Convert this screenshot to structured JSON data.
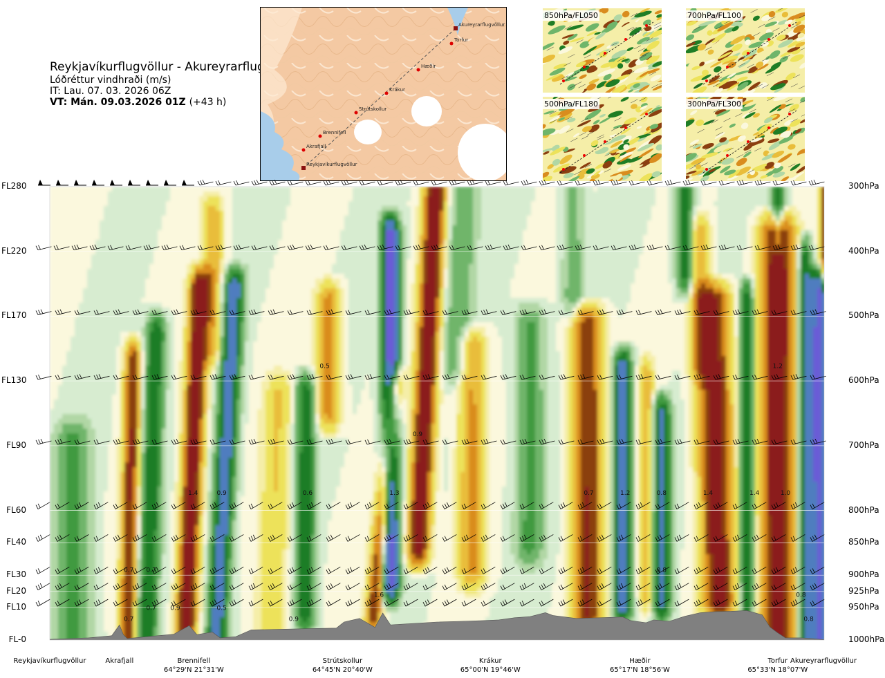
{
  "title": {
    "route": "Reykjavíkurflugvöllur - Akureyrarflugvöllur",
    "variable": "Lóðréttur vindhraði (m/s)",
    "issue_time": "IT: Lau. 07. 03. 2026 06Z",
    "valid_time": "VT: Mán. 09.03.2026 01Z",
    "lead_time": "(+43 h)"
  },
  "map": {
    "waypoints": [
      {
        "name": "Akureyrarflugvöllur"
      },
      {
        "name": "Torfur"
      },
      {
        "name": "Hæðir"
      },
      {
        "name": "Krákur"
      },
      {
        "name": "Strútskollur"
      },
      {
        "name": "Brennifell"
      },
      {
        "name": "Akrafjall"
      },
      {
        "name": "Reykjavíkurflugvöllur"
      }
    ]
  },
  "thumbnails": [
    {
      "label": "850hPa/FL050"
    },
    {
      "label": "700hPa/FL100"
    },
    {
      "label": "500hPa/FL180"
    },
    {
      "label": "300hPa/FL300"
    }
  ],
  "colors": {
    "dark_red": "#8b1a1a",
    "brown": "#8b3f10",
    "orange": "#d98c1e",
    "gold": "#e9bd3a",
    "yellow": "#ede25a",
    "pale_yellow": "#f5eea8",
    "cream": "#fbf8dd",
    "pale_green": "#d7ecd0",
    "light_green": "#b1d7a5",
    "green": "#6fb56a",
    "mid_green": "#3f9a3f",
    "dark_green": "#1f7d25",
    "blue": "#4f7dbf",
    "purple": "#6a5bd6",
    "terrain": "#808080"
  },
  "chart_data": {
    "type": "heatmap",
    "quantity": "vertical wind speed (m/s)",
    "y_levels_left": [
      "FL280",
      "FL220",
      "FL170",
      "FL130",
      "FL90",
      "FL60",
      "FL40",
      "FL30",
      "FL20",
      "FL10",
      "FL-0"
    ],
    "y_levels_right": [
      "300hPa",
      "400hPa",
      "500hPa",
      "600hPa",
      "700hPa",
      "800hPa",
      "850hPa",
      "900hPa",
      "925hPa",
      "950hPa",
      "1000hPa"
    ],
    "pressure_levels_hpa": [
      300,
      400,
      500,
      600,
      700,
      800,
      850,
      900,
      925,
      950,
      1000
    ],
    "x_locations": [
      {
        "name": "Reykjavíkurflugvöllur",
        "coord": "",
        "frac": 0.0
      },
      {
        "name": "Akrafjall",
        "coord": "",
        "frac": 0.09
      },
      {
        "name": "Brennifell",
        "coord": "64°29'N 21°31'W",
        "frac": 0.186
      },
      {
        "name": "Strútskollur",
        "coord": "64°45'N 20°40'W",
        "frac": 0.378
      },
      {
        "name": "Krákur",
        "coord": "65°00'N 19°46'W",
        "frac": 0.569
      },
      {
        "name": "Hæðir",
        "coord": "65°17'N 18°56'W",
        "frac": 0.762
      },
      {
        "name": "Torfur",
        "coord": "65°33'N 18°07'W",
        "frac": 0.94
      },
      {
        "name": "Akureyrarflugvöllur",
        "coord": "",
        "frac": 1.0
      }
    ],
    "bands": [
      {
        "x": 0.03,
        "w": 0.022,
        "amp": -0.5,
        "top": 0.55,
        "bot": 1.0,
        "slope": 0.0
      },
      {
        "x": 0.1,
        "w": 0.01,
        "amp": 1.2,
        "top": 0.38,
        "bot": 1.0,
        "slope": 0.012
      },
      {
        "x": 0.125,
        "w": 0.012,
        "amp": -1.0,
        "top": 0.32,
        "bot": 1.0,
        "slope": 0.018
      },
      {
        "x": 0.175,
        "w": 0.012,
        "amp": 1.6,
        "top": 0.22,
        "bot": 1.0,
        "slope": 0.024
      },
      {
        "x": 0.215,
        "w": 0.012,
        "amp": -1.4,
        "top": 0.22,
        "bot": 1.0,
        "slope": 0.03
      },
      {
        "x": 0.21,
        "w": 0.012,
        "amp": 0.6,
        "top": 0.06,
        "bot": 0.36,
        "slope": 0.0
      },
      {
        "x": 0.285,
        "w": 0.018,
        "amp": 0.4,
        "top": 0.45,
        "bot": 1.0,
        "slope": 0.02
      },
      {
        "x": 0.33,
        "w": 0.012,
        "amp": -0.9,
        "top": 0.45,
        "bot": 0.95,
        "slope": 0.0
      },
      {
        "x": 0.36,
        "w": 0.014,
        "amp": 0.8,
        "top": 0.25,
        "bot": 0.5,
        "slope": 0.0
      },
      {
        "x": 0.415,
        "w": 0.01,
        "amp": 1.2,
        "top": 0.44,
        "bot": 0.95,
        "slope": 0.055
      },
      {
        "x": 0.44,
        "w": 0.011,
        "amp": -1.8,
        "top": 0.1,
        "bot": 0.88,
        "slope": 0.0
      },
      {
        "x": 0.47,
        "w": 0.013,
        "amp": 1.6,
        "top": 0.0,
        "bot": 0.8,
        "slope": 0.028
      },
      {
        "x": 0.51,
        "w": 0.018,
        "amp": -0.4,
        "top": 0.0,
        "bot": 0.4,
        "slope": 0.025
      },
      {
        "x": 0.545,
        "w": 0.016,
        "amp": 0.7,
        "top": 0.35,
        "bot": 0.85,
        "slope": 0.0
      },
      {
        "x": 0.62,
        "w": 0.018,
        "amp": -0.5,
        "top": 0.3,
        "bot": 0.8,
        "slope": 0.0
      },
      {
        "x": 0.675,
        "w": 0.012,
        "amp": -0.4,
        "top": 0.0,
        "bot": 0.25,
        "slope": 0.0
      },
      {
        "x": 0.695,
        "w": 0.018,
        "amp": 1.2,
        "top": 0.3,
        "bot": 0.95,
        "slope": 0.0
      },
      {
        "x": 0.74,
        "w": 0.011,
        "amp": -1.6,
        "top": 0.4,
        "bot": 0.92,
        "slope": 0.0
      },
      {
        "x": 0.77,
        "w": 0.01,
        "amp": 0.6,
        "top": 0.42,
        "bot": 0.9,
        "slope": 0.0
      },
      {
        "x": 0.79,
        "w": 0.011,
        "amp": -1.2,
        "top": 0.5,
        "bot": 0.92,
        "slope": 0.0
      },
      {
        "x": 0.82,
        "w": 0.01,
        "amp": -0.9,
        "top": 0.0,
        "bot": 0.2,
        "slope": 0.0
      },
      {
        "x": 0.84,
        "w": 0.011,
        "amp": 0.6,
        "top": 0.1,
        "bot": 0.4,
        "slope": 0.0
      },
      {
        "x": 0.865,
        "w": 0.02,
        "amp": 1.4,
        "top": 0.25,
        "bot": 0.92,
        "slope": -0.012
      },
      {
        "x": 0.9,
        "w": 0.008,
        "amp": -1.2,
        "top": 0.25,
        "bot": 0.92,
        "slope": 0.0
      },
      {
        "x": 0.94,
        "w": 0.02,
        "amp": 1.6,
        "top": 0.1,
        "bot": 1.0,
        "slope": 0.0
      },
      {
        "x": 0.94,
        "w": 0.008,
        "amp": -0.9,
        "top": 0.0,
        "bot": 0.12,
        "slope": 0.0
      },
      {
        "x": 0.975,
        "w": 0.008,
        "amp": -1.0,
        "top": 0.15,
        "bot": 1.0,
        "slope": 0.0
      },
      {
        "x": 0.994,
        "w": 0.014,
        "amp": -1.8,
        "top": 0.22,
        "bot": 1.0,
        "slope": 0.0
      },
      {
        "x": 1.0,
        "w": 0.006,
        "amp": 1.0,
        "top": 0.0,
        "bot": 0.2,
        "slope": 0.0
      }
    ],
    "value_labels": [
      {
        "text": "0.5",
        "x": 0.355,
        "y": 0.4
      },
      {
        "text": "0.9",
        "x": 0.475,
        "y": 0.55
      },
      {
        "text": "1.2",
        "x": 0.94,
        "y": 0.4
      },
      {
        "text": "1.4",
        "x": 0.185,
        "y": 0.68
      },
      {
        "text": "0.9",
        "x": 0.222,
        "y": 0.68
      },
      {
        "text": "0.6",
        "x": 0.333,
        "y": 0.68
      },
      {
        "text": "1.3",
        "x": 0.445,
        "y": 0.68
      },
      {
        "text": "0.7",
        "x": 0.696,
        "y": 0.68
      },
      {
        "text": "1.2",
        "x": 0.743,
        "y": 0.68
      },
      {
        "text": "0.8",
        "x": 0.79,
        "y": 0.68
      },
      {
        "text": "1.4",
        "x": 0.85,
        "y": 0.68
      },
      {
        "text": "1.4",
        "x": 0.91,
        "y": 0.68
      },
      {
        "text": "1.0",
        "x": 0.95,
        "y": 0.68
      },
      {
        "text": "0.7",
        "x": 0.102,
        "y": 0.85
      },
      {
        "text": "0.7",
        "x": 0.131,
        "y": 0.85
      },
      {
        "text": "0.8",
        "x": 0.79,
        "y": 0.85
      },
      {
        "text": "1.6",
        "x": 0.425,
        "y": 0.905
      },
      {
        "text": "0.8",
        "x": 0.97,
        "y": 0.905
      },
      {
        "text": "0.7",
        "x": 0.131,
        "y": 0.934
      },
      {
        "text": "0.9",
        "x": 0.162,
        "y": 0.934
      },
      {
        "text": "0.5",
        "x": 0.222,
        "y": 0.934
      },
      {
        "text": "0.7",
        "x": 0.102,
        "y": 0.958
      },
      {
        "text": "0.9",
        "x": 0.315,
        "y": 0.958
      },
      {
        "text": "0.8",
        "x": 0.98,
        "y": 0.958
      }
    ],
    "terrain_profile_m": [
      [
        0.0,
        20
      ],
      [
        0.05,
        60
      ],
      [
        0.08,
        120
      ],
      [
        0.09,
        420
      ],
      [
        0.095,
        150
      ],
      [
        0.1,
        40
      ],
      [
        0.12,
        80
      ],
      [
        0.16,
        160
      ],
      [
        0.18,
        400
      ],
      [
        0.19,
        150
      ],
      [
        0.21,
        220
      ],
      [
        0.22,
        60
      ],
      [
        0.24,
        90
      ],
      [
        0.26,
        280
      ],
      [
        0.3,
        300
      ],
      [
        0.34,
        320
      ],
      [
        0.37,
        330
      ],
      [
        0.38,
        500
      ],
      [
        0.4,
        600
      ],
      [
        0.42,
        350
      ],
      [
        0.43,
        750
      ],
      [
        0.44,
        420
      ],
      [
        0.47,
        460
      ],
      [
        0.5,
        500
      ],
      [
        0.53,
        520
      ],
      [
        0.56,
        540
      ],
      [
        0.58,
        560
      ],
      [
        0.6,
        620
      ],
      [
        0.62,
        650
      ],
      [
        0.64,
        760
      ],
      [
        0.65,
        680
      ],
      [
        0.68,
        600
      ],
      [
        0.71,
        620
      ],
      [
        0.74,
        640
      ],
      [
        0.75,
        540
      ],
      [
        0.77,
        480
      ],
      [
        0.78,
        560
      ],
      [
        0.8,
        520
      ],
      [
        0.82,
        660
      ],
      [
        0.84,
        760
      ],
      [
        0.86,
        790
      ],
      [
        0.88,
        800
      ],
      [
        0.9,
        820
      ],
      [
        0.92,
        700
      ],
      [
        0.93,
        360
      ],
      [
        0.94,
        200
      ],
      [
        0.95,
        60
      ],
      [
        0.97,
        60
      ],
      [
        0.985,
        40
      ],
      [
        1.0,
        10
      ]
    ]
  }
}
